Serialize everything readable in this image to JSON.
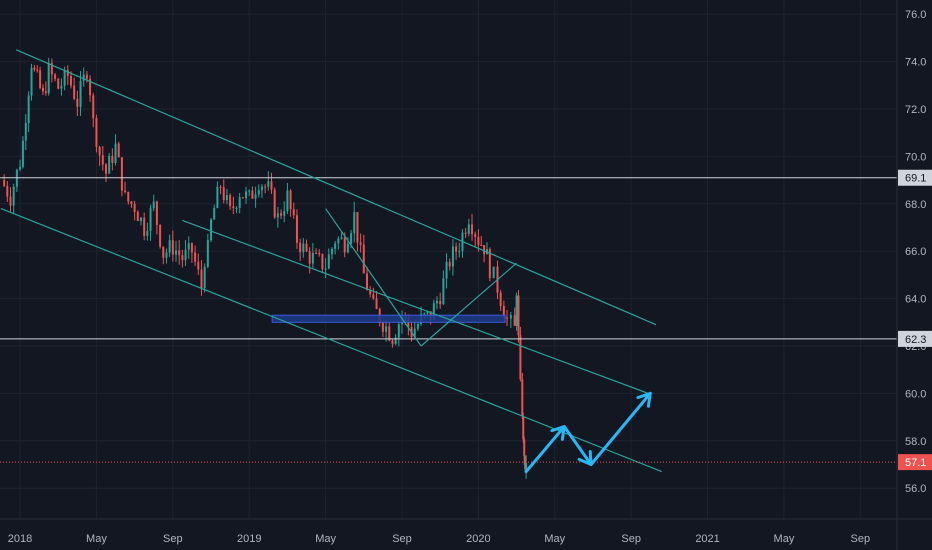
{
  "chart_data": {
    "type": "candlestick",
    "x_axis_ticks": [
      "2018",
      "May",
      "Sep",
      "2019",
      "May",
      "Sep",
      "2020",
      "May",
      "Sep",
      "2021",
      "May",
      "Sep"
    ],
    "x_axis_tick_months": [
      0,
      4,
      8,
      12,
      16,
      20,
      24,
      28,
      32,
      36,
      40,
      44
    ],
    "y_axis_ticks": [
      56.0,
      58.0,
      60.0,
      62.0,
      64.0,
      66.0,
      68.0,
      70.0,
      72.0,
      74.0,
      76.0
    ],
    "ylim": [
      54.7,
      76.6
    ],
    "xlim_months": [
      -1.05,
      45.92
    ],
    "price_series": {
      "time_months": [
        -1.0,
        -0.5,
        0.0,
        0.3,
        0.6,
        0.9,
        1.2,
        1.5,
        2.0,
        2.5,
        3.0,
        3.5,
        4.0,
        4.5,
        5.0,
        5.5,
        6.0,
        6.5,
        7.0,
        7.5,
        8.0,
        8.5,
        9.0,
        9.5,
        10.0,
        10.5,
        11.0,
        11.5,
        12.0,
        12.5,
        13.0,
        13.5,
        14.0,
        14.5,
        15.0,
        15.5,
        16.0,
        16.5,
        17.0,
        17.5,
        18.0,
        18.5,
        19.0,
        19.5,
        20.0,
        20.5,
        21.0,
        21.5,
        22.0,
        22.5,
        23.0,
        23.5,
        24.0,
        24.3,
        24.6,
        25.0,
        25.5,
        25.9,
        26.0,
        26.1,
        26.2,
        26.3,
        26.35,
        26.4,
        26.45,
        26.5
      ],
      "close": [
        69.0,
        68.3,
        69.8,
        71.5,
        73.8,
        73.2,
        72.5,
        73.6,
        72.9,
        73.4,
        72.3,
        73.7,
        70.5,
        69.3,
        70.4,
        68.2,
        67.9,
        67.0,
        67.9,
        65.9,
        66.2,
        65.7,
        66.0,
        64.5,
        67.3,
        68.8,
        67.6,
        68.5,
        68.2,
        69.0,
        68.6,
        67.4,
        68.3,
        66.5,
        65.9,
        65.6,
        65.4,
        66.5,
        66.4,
        67.5,
        65.0,
        63.6,
        63.0,
        62.4,
        63.3,
        62.6,
        63.1,
        63.3,
        64.2,
        65.6,
        66.3,
        67.5,
        66.5,
        66.2,
        65.3,
        64.5,
        63.1,
        62.7,
        64.2,
        62.4,
        60.5,
        59.1,
        58.0,
        57.4,
        56.7,
        57.1
      ],
      "last_close_line": 57.1
    },
    "annotations": {
      "horizontal_levels": [
        69.1,
        62.3
      ],
      "price_badges": [
        "69.1",
        "62.3",
        "57.1"
      ],
      "support_zone": {
        "x_months": [
          13.2,
          25.4
        ],
        "y": [
          63.0,
          63.3
        ]
      },
      "channel_lines": [
        {
          "x_months": [
            -0.2,
            33.3
          ],
          "y": [
            74.5,
            62.9
          ]
        },
        {
          "x_months": [
            -1.0,
            33.6
          ],
          "y": [
            67.8,
            56.7
          ]
        },
        {
          "x_months": [
            8.5,
            32.9
          ],
          "y": [
            67.3,
            60.0
          ]
        }
      ],
      "pattern_lines": [
        {
          "x_months": [
            16.0,
            21.0
          ],
          "y": [
            67.8,
            62.0
          ]
        },
        {
          "x_months": [
            21.0,
            26.0
          ],
          "y": [
            62.0,
            65.5
          ]
        }
      ],
      "projection_arrows": [
        {
          "x_months": [
            26.5,
            28.5
          ],
          "y": [
            56.7,
            58.6
          ]
        },
        {
          "x_months": [
            28.5,
            29.9
          ],
          "y": [
            58.6,
            57.0
          ]
        },
        {
          "x_months": [
            29.9,
            33.0
          ],
          "y": [
            57.0,
            60.0
          ]
        }
      ]
    },
    "colors": {
      "background": "#131722",
      "grid": "#1f2330",
      "up_candle": "#26a69a",
      "down_candle": "#ef5350",
      "level_line": "#d1d4dc",
      "channel": "#26a69a",
      "support_zone": "#1e3a8a",
      "arrow": "#29b6f6",
      "last_price": "#ef5350"
    },
    "grid": true,
    "price_scale_position": "right"
  }
}
